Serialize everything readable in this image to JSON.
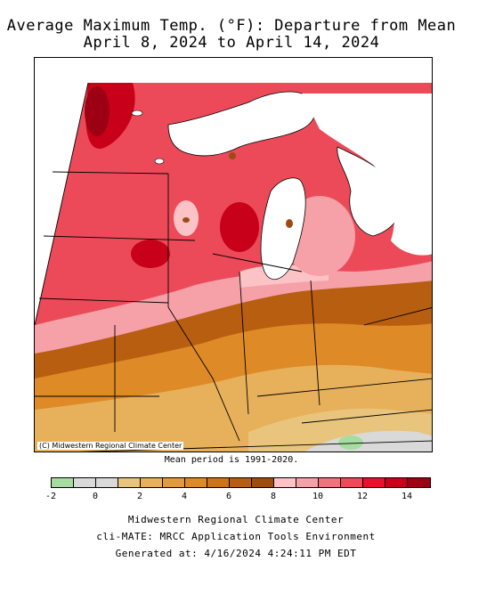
{
  "title_line1": "Average Maximum Temp. (°F): Departure from Mean",
  "title_line2": "April 8, 2024 to April 14, 2024",
  "credit": "(C) Midwestern Regional Climate Center",
  "mean_period": "Mean period is 1991-2020.",
  "legend": {
    "colors": [
      "#a6dca0",
      "#d9d9d9",
      "#d9d9d9",
      "#e9c47d",
      "#e7b05a",
      "#e39a3c",
      "#de8a26",
      "#cf7317",
      "#b85e10",
      "#9e4c0c",
      "#fbc3c6",
      "#f6a0a8",
      "#f1717d",
      "#ec4a59",
      "#e8102a",
      "#c8001a",
      "#9c0012"
    ],
    "ticks": [
      "-2",
      "0",
      "2",
      "4",
      "6",
      "8",
      "10",
      "12",
      "14"
    ]
  },
  "footer": {
    "line1": "Midwestern Regional Climate Center",
    "line2": "cli-MATE: MRCC Application Tools Environment",
    "line3": "Generated at: 4/16/2024 4:24:11 PM EDT"
  }
}
